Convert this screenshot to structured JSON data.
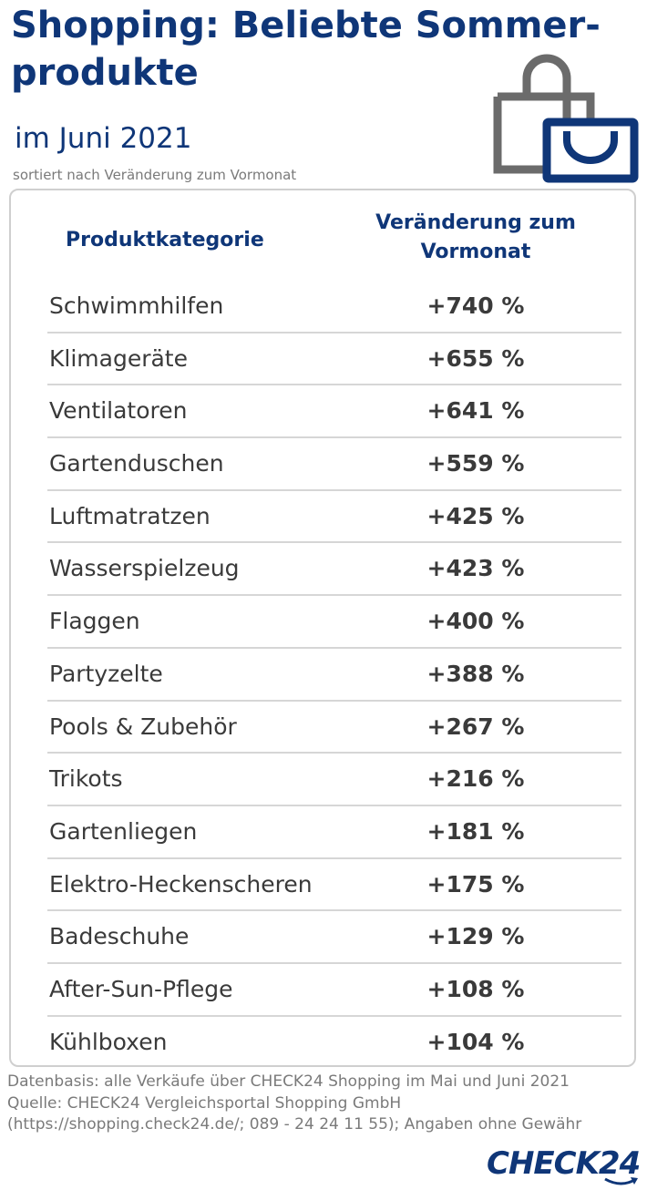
{
  "header": {
    "title_line1": "Shopping: Beliebte Sommer-",
    "title_line2": "produkte",
    "subtitle": "im Juni 2021",
    "note": "sortiert nach Veränderung zum Vormonat"
  },
  "icon": {
    "name": "shopping-bag-icon",
    "color_gray": "#6b6b6b",
    "color_blue": "#0f3678"
  },
  "table": {
    "header_category": "Produktkategorie",
    "header_change_line1": "Veränderung zum",
    "header_change_line2": "Vormonat",
    "rows": [
      {
        "category": "Schwimmhilfen",
        "change": "+740 %"
      },
      {
        "category": "Klimageräte",
        "change": "+655 %"
      },
      {
        "category": "Ventilatoren",
        "change": "+641 %"
      },
      {
        "category": "Gartenduschen",
        "change": "+559 %"
      },
      {
        "category": "Luftmatratzen",
        "change": "+425 %"
      },
      {
        "category": "Wasserspielzeug",
        "change": "+423 %"
      },
      {
        "category": "Flaggen",
        "change": "+400 %"
      },
      {
        "category": "Partyzelte",
        "change": "+388 %"
      },
      {
        "category": "Pools & Zubehör",
        "change": "+267 %"
      },
      {
        "category": "Trikots",
        "change": "+216 %"
      },
      {
        "category": "Gartenliegen",
        "change": "+181 %"
      },
      {
        "category": "Elektro-Heckenscheren",
        "change": "+175 %"
      },
      {
        "category": "Badeschuhe",
        "change": "+129 %"
      },
      {
        "category": "After-Sun-Pflege",
        "change": "+108 %"
      },
      {
        "category": "Kühlboxen",
        "change": "+104 %"
      }
    ]
  },
  "footer": {
    "line1": "Datenbasis: alle Verkäufe über CHECK24 Shopping im Mai und Juni 2021",
    "line2": "Quelle: CHECK24 Vergleichsportal Shopping GmbH",
    "line3": "(https://shopping.check24.de/; 089 - 24 24 11 55); Angaben ohne Gewähr"
  },
  "brand": {
    "logo_text": "CHECK24",
    "color": "#0f3678"
  }
}
